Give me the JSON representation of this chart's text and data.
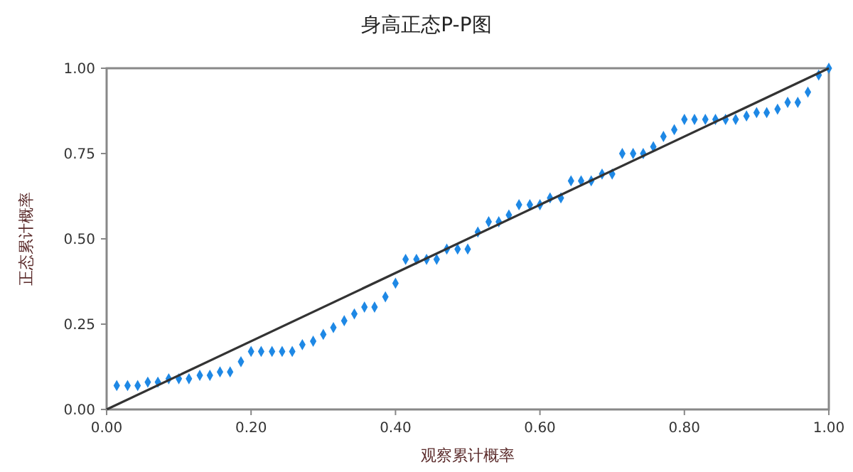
{
  "chart_data": {
    "type": "scatter",
    "title": "身高正态P-P图",
    "xlabel": "观察累计概率",
    "ylabel": "正态累计概率",
    "xlim": [
      0,
      1
    ],
    "ylim": [
      0,
      1
    ],
    "xticks": [
      {
        "value": 0,
        "label": "0.00"
      },
      {
        "value": 0.2,
        "label": "0.20"
      },
      {
        "value": 0.4,
        "label": "0.40"
      },
      {
        "value": 0.6,
        "label": "0.60"
      },
      {
        "value": 0.8,
        "label": "0.80"
      },
      {
        "value": 1,
        "label": "1.00"
      }
    ],
    "yticks": [
      {
        "value": 0,
        "label": "0.00"
      },
      {
        "value": 0.25,
        "label": "0.25"
      },
      {
        "value": 0.5,
        "label": "0.50"
      },
      {
        "value": 0.75,
        "label": "0.75"
      },
      {
        "value": 1,
        "label": "1.00"
      }
    ],
    "grid": false,
    "series": [
      {
        "color": "#1e88e5",
        "marker": "diamond",
        "x": [
          0.014,
          0.029,
          0.043,
          0.057,
          0.071,
          0.086,
          0.1,
          0.114,
          0.129,
          0.143,
          0.157,
          0.171,
          0.186,
          0.2,
          0.214,
          0.229,
          0.243,
          0.257,
          0.271,
          0.286,
          0.3,
          0.314,
          0.329,
          0.343,
          0.357,
          0.371,
          0.386,
          0.4,
          0.414,
          0.429,
          0.443,
          0.457,
          0.471,
          0.486,
          0.5,
          0.514,
          0.529,
          0.543,
          0.557,
          0.571,
          0.586,
          0.6,
          0.614,
          0.629,
          0.643,
          0.657,
          0.671,
          0.686,
          0.7,
          0.714,
          0.729,
          0.743,
          0.757,
          0.771,
          0.786,
          0.8,
          0.814,
          0.829,
          0.843,
          0.857,
          0.871,
          0.886,
          0.9,
          0.914,
          0.929,
          0.943,
          0.957,
          0.971,
          0.986,
          1.0
        ],
        "values": [
          0.07,
          0.07,
          0.07,
          0.08,
          0.08,
          0.09,
          0.09,
          0.09,
          0.1,
          0.1,
          0.11,
          0.11,
          0.14,
          0.17,
          0.17,
          0.17,
          0.17,
          0.17,
          0.19,
          0.2,
          0.22,
          0.24,
          0.26,
          0.28,
          0.3,
          0.3,
          0.33,
          0.37,
          0.44,
          0.44,
          0.44,
          0.44,
          0.47,
          0.47,
          0.47,
          0.52,
          0.55,
          0.55,
          0.57,
          0.6,
          0.6,
          0.6,
          0.62,
          0.62,
          0.67,
          0.67,
          0.67,
          0.69,
          0.69,
          0.75,
          0.75,
          0.75,
          0.77,
          0.8,
          0.82,
          0.85,
          0.85,
          0.85,
          0.85,
          0.85,
          0.85,
          0.86,
          0.87,
          0.87,
          0.88,
          0.9,
          0.9,
          0.93,
          0.98,
          1.0
        ]
      },
      {
        "type": "line",
        "color": "#333333",
        "x": [
          0,
          1
        ],
        "values": [
          0,
          1
        ],
        "marker": "none"
      }
    ]
  }
}
